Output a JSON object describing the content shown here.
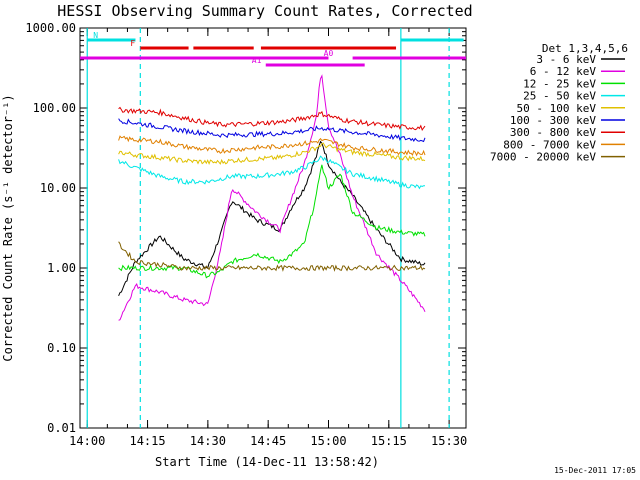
{
  "chart_data": {
    "type": "line",
    "title": "HESSI Observing Summary Count Rates, Corrected",
    "xlabel": "Start Time (14-Dec-11 13:58:42)",
    "ylabel": "Corrected Count Rate (s⁻¹ detector⁻¹)",
    "yscale": "log",
    "ylim": [
      0.01,
      1000
    ],
    "xlim_minutes": [
      13.97,
      15.57
    ],
    "x_tick_labels": [
      "14:00",
      "14:15",
      "14:30",
      "14:45",
      "15:00",
      "15:15",
      "15:30"
    ],
    "y_tick_labels": [
      "1000.00",
      "100.00",
      "10.00",
      "1.00",
      "0.10",
      "0.01"
    ],
    "legend_title": "Det 1,3,4,5,6",
    "timestamp": "15-Dec-2011 17:05",
    "flags": [
      {
        "label": "N",
        "color": "#00e0e0",
        "segments": [
          [
            14.0,
            14.2
          ],
          [
            15.3,
            15.56
          ]
        ]
      },
      {
        "label": "F",
        "color": "#e00000",
        "segments": [
          [
            14.22,
            14.42
          ],
          [
            14.44,
            14.69
          ],
          [
            14.72,
            15.28
          ]
        ]
      },
      {
        "label": "A1",
        "color": "#e000e0",
        "segments": [
          [
            14.74,
            15.15
          ]
        ]
      },
      {
        "label": "A0",
        "color": "#e000e0",
        "segments": [
          [
            13.97,
            15.0
          ],
          [
            15.1,
            15.57
          ]
        ]
      }
    ],
    "vlines": [
      {
        "x": 14.0,
        "color": "#00e0e0",
        "style": "solid"
      },
      {
        "x": 14.22,
        "color": "#00e0e0",
        "style": "dashed"
      },
      {
        "x": 15.3,
        "color": "#00e0e0",
        "style": "solid"
      },
      {
        "x": 15.5,
        "color": "#00e0e0",
        "style": "dashed"
      }
    ],
    "x": [
      14.13,
      14.2,
      14.3,
      14.4,
      14.5,
      14.55,
      14.6,
      14.7,
      14.8,
      14.85,
      14.9,
      14.95,
      14.97,
      15.0,
      15.05,
      15.1,
      15.2,
      15.3,
      15.4
    ],
    "series": [
      {
        "name": "3 - 6 keV",
        "color": "#000000",
        "values": [
          0.45,
          1.2,
          2.5,
          1.3,
          1.0,
          2.5,
          7,
          4,
          3,
          6,
          10,
          25,
          40,
          20,
          12,
          8,
          3,
          1.3,
          1.1
        ]
      },
      {
        "name": "6 - 12 keV",
        "color": "#e000e0",
        "values": [
          0.22,
          0.6,
          0.5,
          0.4,
          0.35,
          1.5,
          10,
          5,
          3,
          8,
          20,
          80,
          300,
          60,
          25,
          8,
          1.5,
          0.7,
          0.3
        ]
      },
      {
        "name": "12 - 25 keV",
        "color": "#00e000",
        "values": [
          1.0,
          1.0,
          1.0,
          1.0,
          0.8,
          0.9,
          1.2,
          1.5,
          1.2,
          1.5,
          2.0,
          8,
          20,
          10,
          15,
          5,
          3.2,
          2.8,
          2.6
        ]
      },
      {
        "name": "25 - 50 keV",
        "color": "#00e8e8",
        "values": [
          22,
          18,
          14,
          12,
          12,
          13,
          14,
          14,
          15,
          16,
          18,
          22,
          24,
          22,
          18,
          15,
          13,
          11,
          10
        ]
      },
      {
        "name": "50 - 100 keV",
        "color": "#e0c000",
        "values": [
          28,
          26,
          24,
          22,
          21,
          21,
          22,
          23,
          24,
          26,
          28,
          32,
          35,
          33,
          30,
          28,
          26,
          24,
          23
        ]
      },
      {
        "name": "100 - 300 keV",
        "color": "#0000e0",
        "values": [
          70,
          65,
          58,
          52,
          48,
          46,
          46,
          47,
          48,
          50,
          52,
          55,
          56,
          55,
          52,
          50,
          46,
          42,
          40
        ]
      },
      {
        "name": "300 - 800 keV",
        "color": "#e00000",
        "values": [
          95,
          92,
          88,
          75,
          65,
          62,
          62,
          64,
          67,
          70,
          75,
          82,
          85,
          80,
          72,
          68,
          62,
          58,
          56
        ]
      },
      {
        "name": "800 - 7000 keV",
        "color": "#e08000",
        "values": [
          42,
          40,
          38,
          33,
          30,
          29,
          30,
          32,
          33,
          35,
          36,
          38,
          40,
          38,
          35,
          32,
          30,
          28,
          27
        ]
      },
      {
        "name": "7000 - 20000 keV",
        "color": "#806000",
        "values": [
          2.0,
          1.2,
          1.1,
          1.0,
          1.0,
          1.0,
          1.0,
          1.0,
          1.0,
          1.0,
          1.0,
          1.0,
          1.0,
          1.0,
          1.0,
          1.0,
          1.0,
          1.0,
          1.0
        ]
      }
    ]
  }
}
